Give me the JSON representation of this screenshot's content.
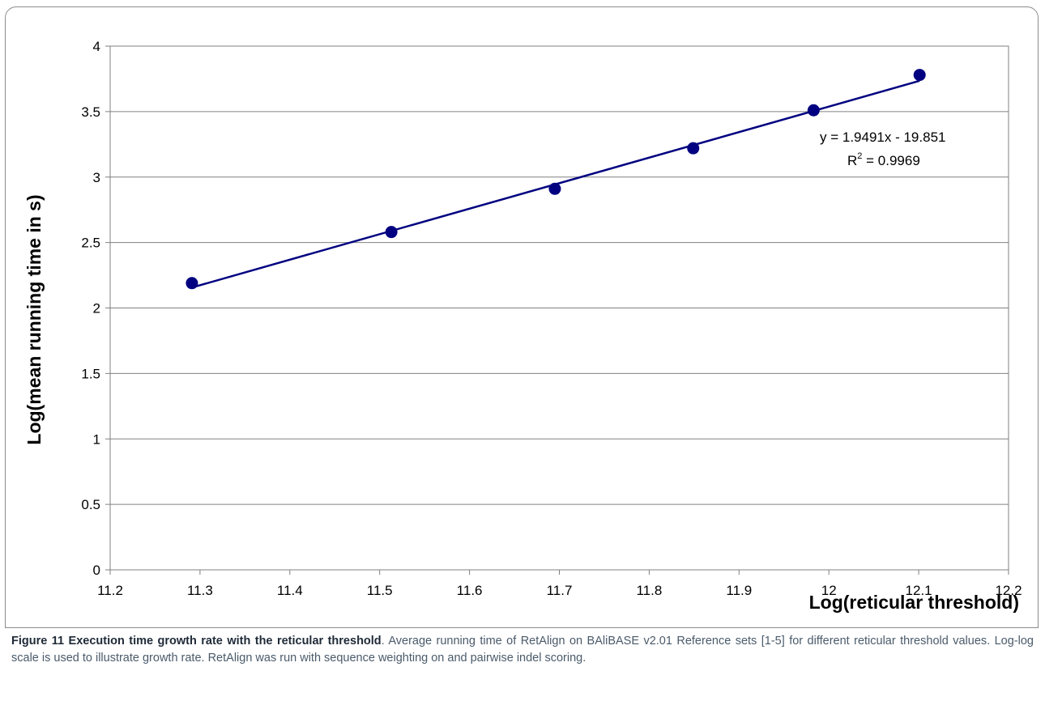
{
  "chart_data": {
    "type": "scatter",
    "xlabel": "Log(reticular threshold)",
    "ylabel": "Log(mean running time in s)",
    "xlim": [
      11.2,
      12.2
    ],
    "ylim": [
      0,
      4
    ],
    "xticks": [
      "11.2",
      "11.3",
      "11.4",
      "11.5",
      "11.6",
      "11.7",
      "11.8",
      "11.9",
      "12",
      "12.1",
      "12.2"
    ],
    "yticks": [
      "0",
      "0.5",
      "1",
      "1.5",
      "2",
      "2.5",
      "3",
      "3.5",
      "4"
    ],
    "grid": "horizontal",
    "series": [
      {
        "x": [
          11.291,
          11.513,
          11.695,
          11.849,
          11.983,
          12.101
        ],
        "y": [
          2.19,
          2.58,
          2.91,
          3.22,
          3.51,
          3.78
        ],
        "color": "#000080"
      }
    ],
    "trendline": {
      "slope": 1.9491,
      "intercept": -19.851,
      "color": "#000080",
      "equation_label": "y = 1.9491x - 19.851",
      "r2_prefix": "R",
      "r2_sup": "2",
      "r2_suffix": " = 0.9969"
    }
  },
  "caption": {
    "label": "Figure 11 Execution time growth rate with the reticular threshold",
    "text": ". Average running time of RetAlign on BAliBASE v2.01 Reference sets [1-5] for different reticular threshold values. Log-log scale is used to illustrate growth rate. RetAlign was run with sequence weighting on and pairwise indel scoring."
  }
}
